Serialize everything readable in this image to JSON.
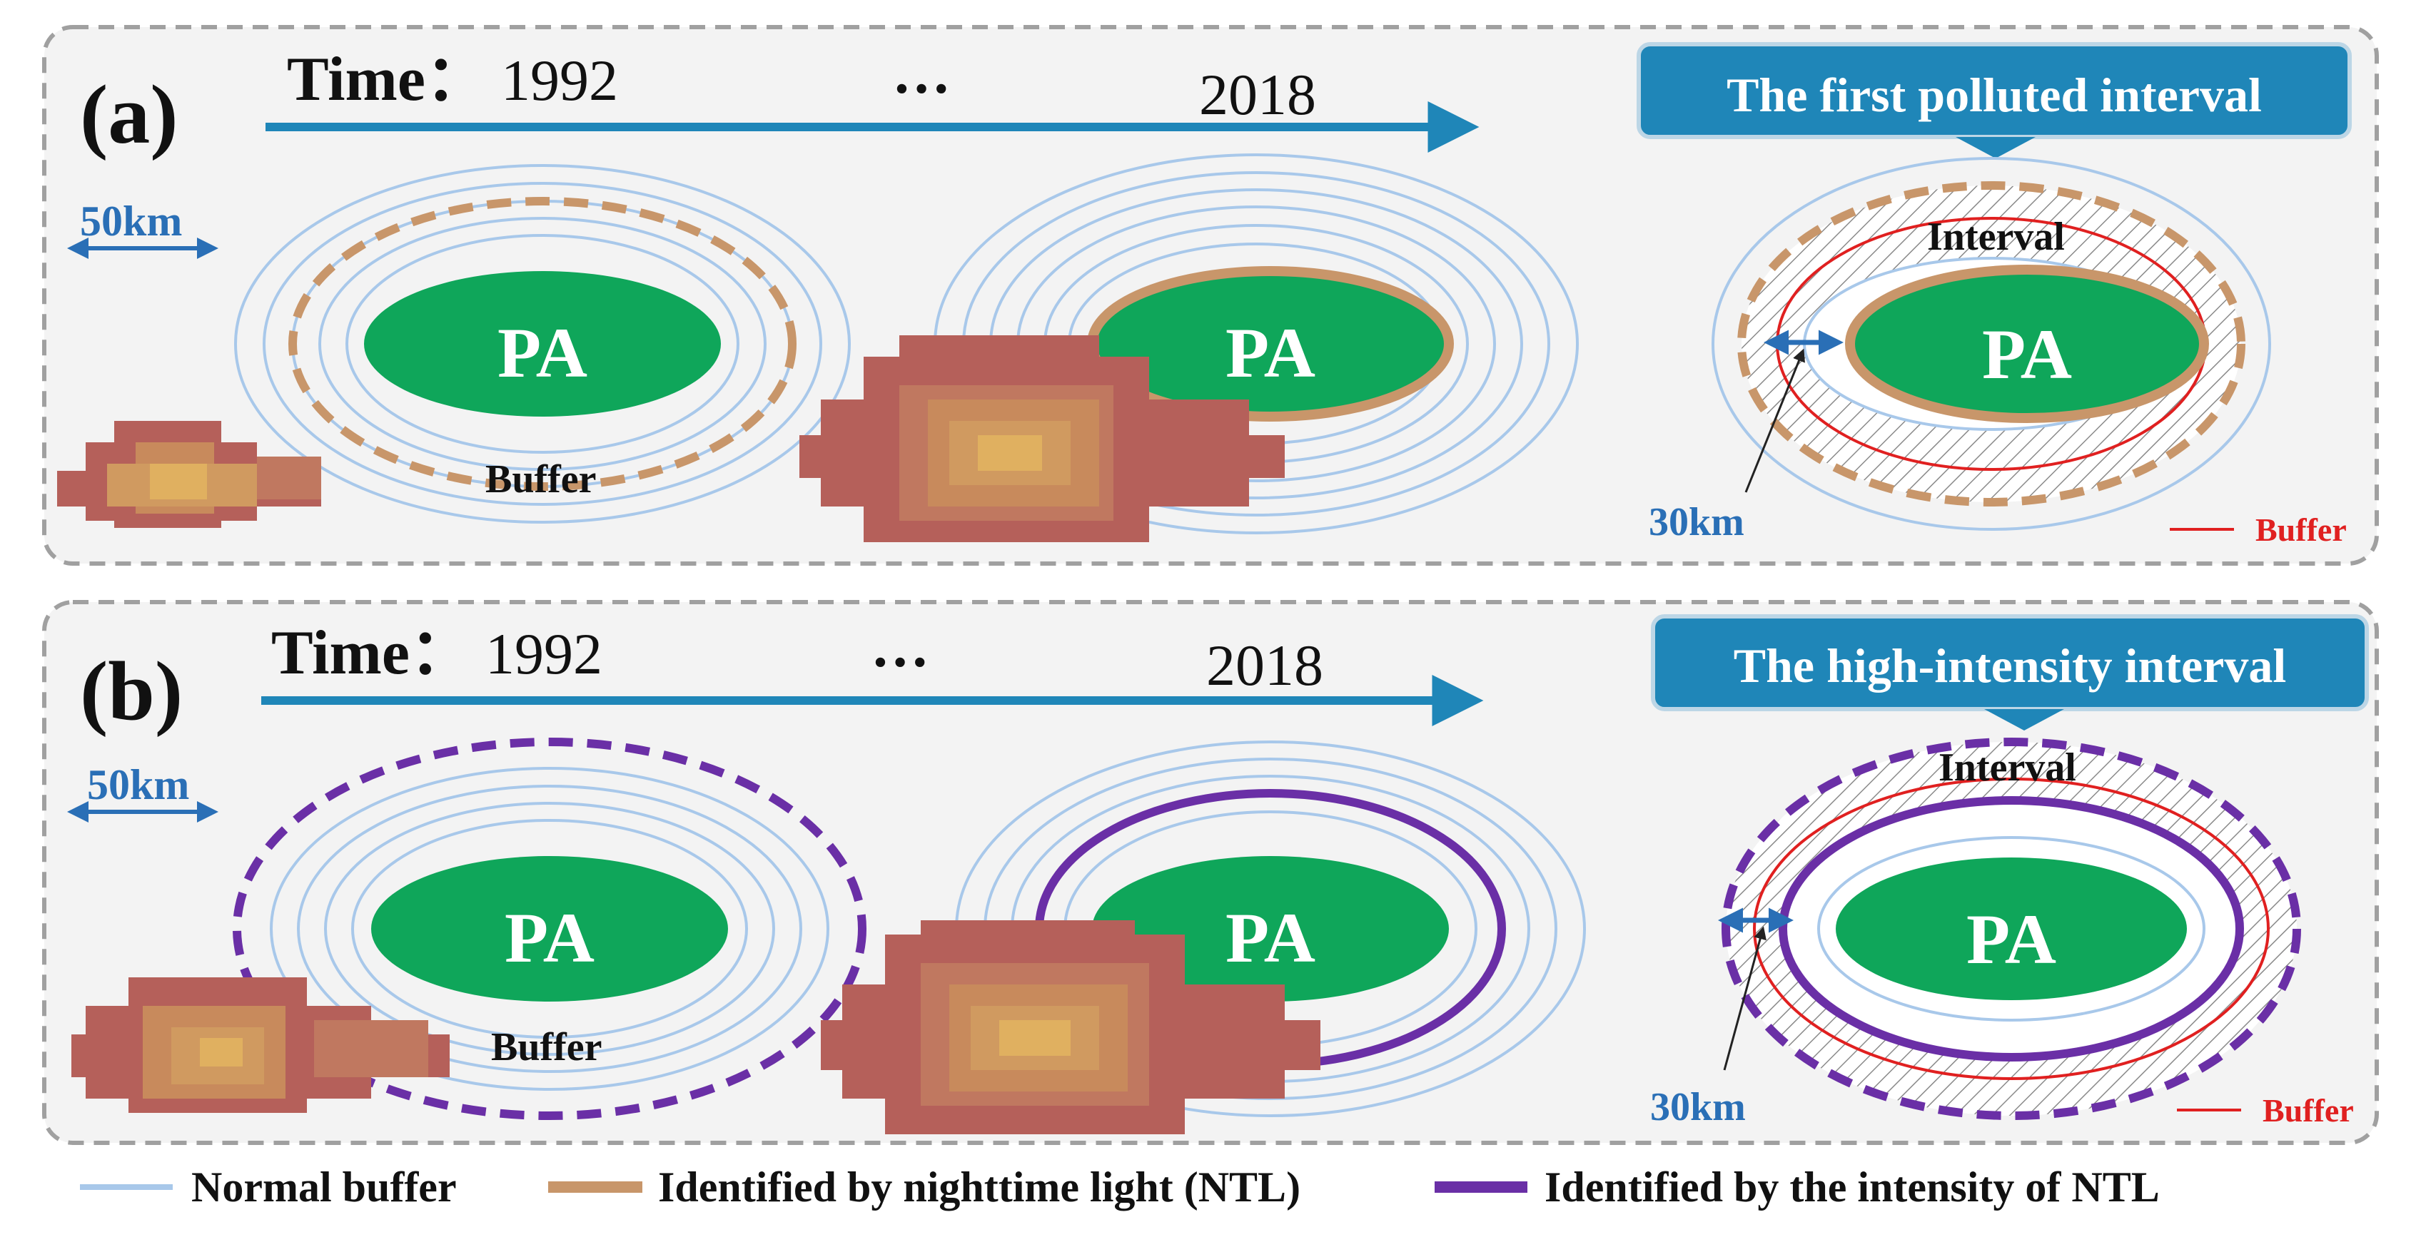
{
  "panels": {
    "a": {
      "label": "(a)",
      "time_label": "Time：",
      "year_start": "1992",
      "ellipsis": "…",
      "year_end": "2018",
      "scale_label": "50km",
      "pa_label": "PA",
      "buffer_label": "Buffer",
      "callout": "The first polluted interval",
      "interval_label": "Interval",
      "distance_label": "30km",
      "legend_buffer": "Buffer"
    },
    "b": {
      "label": "(b)",
      "time_label": "Time：",
      "year_start": "1992",
      "ellipsis": "…",
      "year_end": "2018",
      "scale_label": "50km",
      "pa_label": "PA",
      "buffer_label": "Buffer",
      "callout": "The high-intensity interval",
      "interval_label": "Interval",
      "distance_label": "30km",
      "legend_buffer": "Buffer"
    }
  },
  "legend": {
    "normal_buffer": "Normal buffer",
    "ntl": "Identified by nighttime light (NTL)",
    "intensity": "Identified by the intensity of NTL"
  },
  "colors": {
    "pa_green": "#0fa65a",
    "normal_buffer": "#a8c8ea",
    "ntl_orange": "#c8966a",
    "intensity_purple": "#6a2fa6",
    "arrow_blue": "#1f86b8",
    "callout_blue": "#1f86b8",
    "scale_blue": "#2a6fb6",
    "red_buffer": "#e02020"
  }
}
